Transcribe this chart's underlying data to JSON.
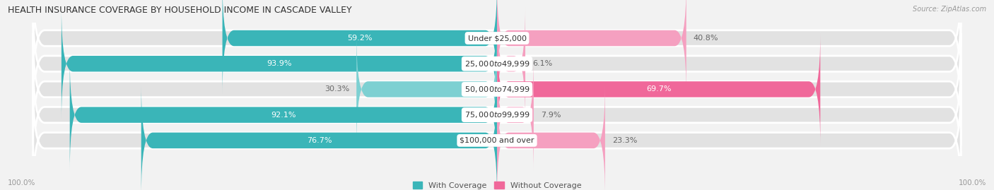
{
  "title": "HEALTH INSURANCE COVERAGE BY HOUSEHOLD INCOME IN CASCADE VALLEY",
  "source": "Source: ZipAtlas.com",
  "categories": [
    "Under $25,000",
    "$25,000 to $49,999",
    "$50,000 to $74,999",
    "$75,000 to $99,999",
    "$100,000 and over"
  ],
  "with_coverage": [
    59.2,
    93.9,
    30.3,
    92.1,
    76.7
  ],
  "without_coverage": [
    40.8,
    6.1,
    69.7,
    7.9,
    23.3
  ],
  "color_with_strong": "#3ab5b8",
  "color_with_light": "#7dd0d2",
  "color_without_strong": "#f0689a",
  "color_without_light": "#f5a0c0",
  "bg_color": "#f2f2f2",
  "bar_bg_color": "#e2e2e2",
  "legend_with": "With Coverage",
  "legend_without": "Without Coverage",
  "axis_label_left": "100.0%",
  "axis_label_right": "100.0%",
  "bar_height": 0.62,
  "title_fontsize": 9,
  "label_fontsize": 8,
  "source_fontsize": 7,
  "legend_fontsize": 8,
  "cat_label_fontsize": 8,
  "max_val": 100
}
